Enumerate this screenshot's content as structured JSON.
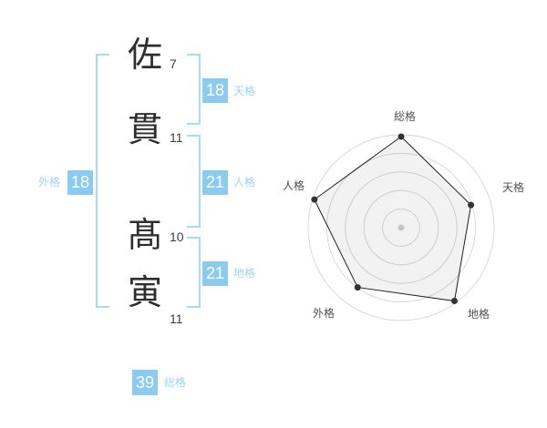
{
  "page": {
    "background": "#ffffff"
  },
  "colors": {
    "badge_blue": "#8BCBF0",
    "label_blue": "#9ED4F2",
    "bracket_blue": "#A6DCF7",
    "badge_text": "#ffffff",
    "kanji_text": "#2e2e2e",
    "stroke_number_text": "#3f3f3f",
    "chart_ring": "#d9d9d9",
    "chart_outline": "#1f1f1f",
    "chart_point": "#333333",
    "chart_center_dot": "#c6c6c6",
    "chart_label": "#515151"
  },
  "name_display": {
    "characters": [
      {
        "char": "佐",
        "strokes": "7"
      },
      {
        "char": "貫",
        "strokes": "11"
      },
      {
        "char": "髙",
        "strokes": "10"
      },
      {
        "char": "寅",
        "strokes": "11"
      }
    ],
    "badges": {
      "tenkaku": {
        "value": "18",
        "label": "天格"
      },
      "jinkaku": {
        "value": "21",
        "label": "人格"
      },
      "chikaku": {
        "value": "21",
        "label": "地格"
      },
      "gaikaku": {
        "value": "18",
        "label": "外格"
      },
      "soukaku": {
        "value": "39",
        "label": "総格"
      }
    }
  },
  "chart_data": {
    "type": "radar",
    "categories": [
      "総格",
      "天格",
      "地格",
      "外格",
      "人格"
    ],
    "values": [
      39,
      18,
      21,
      18,
      21
    ],
    "plotted_fraction": [
      0.98,
      0.79,
      0.975,
      0.795,
      0.98
    ],
    "rings": 5,
    "axis_order": "clockwise from top",
    "legend_position": "none",
    "grid": "concentric-circles"
  }
}
